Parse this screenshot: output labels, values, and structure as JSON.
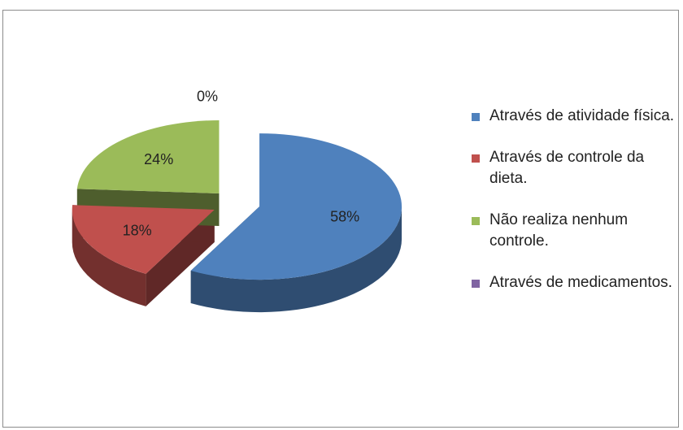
{
  "chart_data": {
    "type": "pie",
    "categories": [
      "Através de atividade física.",
      "Através de controle da dieta.",
      "Não realiza nenhum controle.",
      "Através de medicamentos."
    ],
    "values": [
      58,
      18,
      24,
      0
    ],
    "value_labels": [
      "58%",
      "18%",
      "24%",
      "0%"
    ],
    "colors": [
      "#4f81bd",
      "#c0504d",
      "#9bbb59",
      "#8064a2"
    ],
    "legend": "right"
  }
}
